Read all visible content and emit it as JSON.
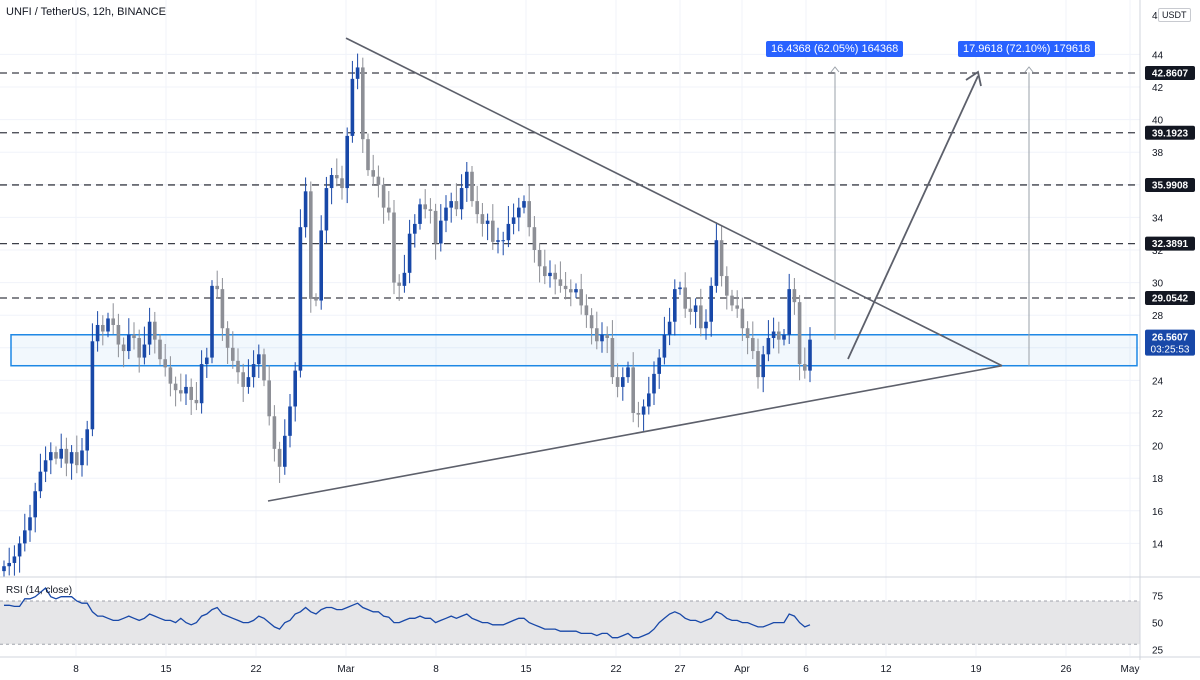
{
  "chart_title": "UNFI / TetherUS, 12h, BINANCE",
  "unit_label": "USDT",
  "rsi_title": "RSI (14, close)",
  "colors": {
    "up": "#1848a8",
    "down": "#8d8f96",
    "trendline": "#5d606b",
    "zone": "#1e88e5",
    "level_badge": "#131722",
    "current_badge": "#1848a8",
    "rsi_line": "#1848a8",
    "rsi_band": "#e6e6e8",
    "measure": "#2962ff"
  },
  "measurements": [
    {
      "label": "16.4368 (62.05%) 164368"
    },
    {
      "label": "17.9618 (72.10%) 179618"
    }
  ],
  "price_axis": {
    "ticks": [
      "44",
      "42",
      "40",
      "38",
      "36",
      "34",
      "32",
      "30",
      "28",
      "26",
      "24",
      "22",
      "20",
      "18",
      "16",
      "14"
    ],
    "top_label": "4",
    "levels": [
      "42.8607",
      "39.1923",
      "35.9908",
      "32.3891",
      "29.0542"
    ],
    "current": {
      "price": "26.5607",
      "countdown": "03:25:53"
    }
  },
  "rsi_axis": {
    "ticks": [
      "75",
      "50",
      "25"
    ]
  },
  "x_axis": {
    "ticks": [
      "8",
      "15",
      "22",
      "Mar",
      "8",
      "15",
      "22",
      "27",
      "Apr",
      "6",
      "12",
      "19",
      "26",
      "May"
    ]
  },
  "chart_data": {
    "type": "line",
    "title": "UNFI / TetherUS, 12h, BINANCE",
    "price_range": [
      12,
      45
    ],
    "levels": [
      42.8607,
      39.1923,
      35.9908,
      32.3891,
      29.0542
    ],
    "support_zone": [
      24.9,
      26.8
    ],
    "symmetrical_triangle": {
      "upper_line": [
        [
          45.0,
          "Mar 1"
        ],
        [
          24.9,
          "Apr 20"
        ]
      ],
      "lower_line": [
        [
          16.6,
          "Feb 22"
        ],
        [
          24.9,
          "Apr 20"
        ]
      ]
    },
    "projections": [
      {
        "from": 26.5,
        "to": 42.9,
        "change": 16.4368,
        "percent": 62.05
      },
      {
        "from": 24.9,
        "to": 42.9,
        "change": 17.9618,
        "percent": 72.1
      }
    ],
    "series": [
      {
        "name": "UNFI / TetherUS",
        "close": [
          12.6,
          12.8,
          13.2,
          14.0,
          14.8,
          15.6,
          17.2,
          18.4,
          19.1,
          19.6,
          19.2,
          19.8,
          18.9,
          19.6,
          18.8,
          19.7,
          21.0,
          26.4,
          27.4,
          27.0,
          27.8,
          27.4,
          26.2,
          25.8,
          26.8,
          26.6,
          25.4,
          26.2,
          27.6,
          26.5,
          25.3,
          24.8,
          23.8,
          23.4,
          23.2,
          23.6,
          22.8,
          22.6,
          25.0,
          25.4,
          29.8,
          29.6,
          27.2,
          26.0,
          25.2,
          24.5,
          23.6,
          24.2,
          25.0,
          25.6,
          24.0,
          21.8,
          19.8,
          18.7,
          20.6,
          22.4,
          24.6,
          33.4,
          35.6,
          29.0,
          28.9,
          33.2,
          35.8,
          36.6,
          36.4,
          35.8,
          39.0,
          42.5,
          43.2,
          38.8,
          36.9,
          36.5,
          36.0,
          34.6,
          34.3,
          30.0,
          29.8,
          30.6,
          33.0,
          33.6,
          34.8,
          34.5,
          34.4,
          32.4,
          33.8,
          34.6,
          35.0,
          34.5,
          35.8,
          36.8,
          35.0,
          34.2,
          33.6,
          33.8,
          32.5,
          32.6,
          32.6,
          33.6,
          34.0,
          34.6,
          35.0,
          33.4,
          32.0,
          31.0,
          30.4,
          30.6,
          30.2,
          29.8,
          29.6,
          29.4,
          29.6,
          28.6,
          28.0,
          27.2,
          26.4,
          26.8,
          26.6,
          24.2,
          23.6,
          24.2,
          24.8,
          22.0,
          21.9,
          22.4,
          23.2,
          24.4,
          25.4,
          26.8,
          27.6,
          29.6,
          29.7,
          28.4,
          28.2,
          28.6,
          27.2,
          27.6,
          29.8,
          32.6,
          30.4,
          29.2,
          28.6,
          28.4,
          27.2,
          26.6,
          25.8,
          24.2,
          25.6,
          26.6,
          27.0,
          26.5,
          26.8,
          29.6,
          28.8,
          25.0,
          24.6,
          26.5
        ],
        "color": "#1848a8"
      },
      {
        "name": "RSI (14, close)",
        "values": [
          66,
          66,
          65,
          65,
          72,
          72,
          74,
          78,
          82,
          74,
          72,
          74,
          74,
          74,
          70,
          68,
          68,
          60,
          56,
          56,
          54,
          52,
          52,
          54,
          56,
          54,
          52,
          54,
          58,
          56,
          54,
          52,
          52,
          50,
          54,
          50,
          48,
          50,
          56,
          58,
          62,
          64,
          58,
          56,
          54,
          52,
          50,
          50,
          52,
          56,
          54,
          50,
          46,
          44,
          50,
          52,
          58,
          60,
          64,
          60,
          58,
          62,
          64,
          64,
          62,
          62,
          64,
          66,
          68,
          64,
          62,
          60,
          60,
          56,
          55,
          50,
          50,
          52,
          54,
          54,
          56,
          54,
          54,
          50,
          52,
          54,
          56,
          54,
          56,
          58,
          54,
          52,
          50,
          50,
          48,
          48,
          48,
          50,
          52,
          54,
          54,
          50,
          48,
          46,
          44,
          44,
          44,
          42,
          42,
          42,
          42,
          40,
          40,
          40,
          38,
          40,
          40,
          36,
          36,
          38,
          40,
          36,
          36,
          38,
          40,
          44,
          50,
          54,
          58,
          60,
          58,
          54,
          52,
          52,
          50,
          52,
          54,
          60,
          58,
          54,
          52,
          52,
          50,
          50,
          48,
          46,
          46,
          48,
          50,
          50,
          50,
          58,
          56,
          50,
          46,
          48
        ],
        "color": "#1848a8"
      }
    ],
    "rsi_range": [
      20,
      85
    ],
    "rsi_band": [
      30,
      70
    ],
    "xlabel": "",
    "ylabel": "USDT",
    "grid": true
  }
}
